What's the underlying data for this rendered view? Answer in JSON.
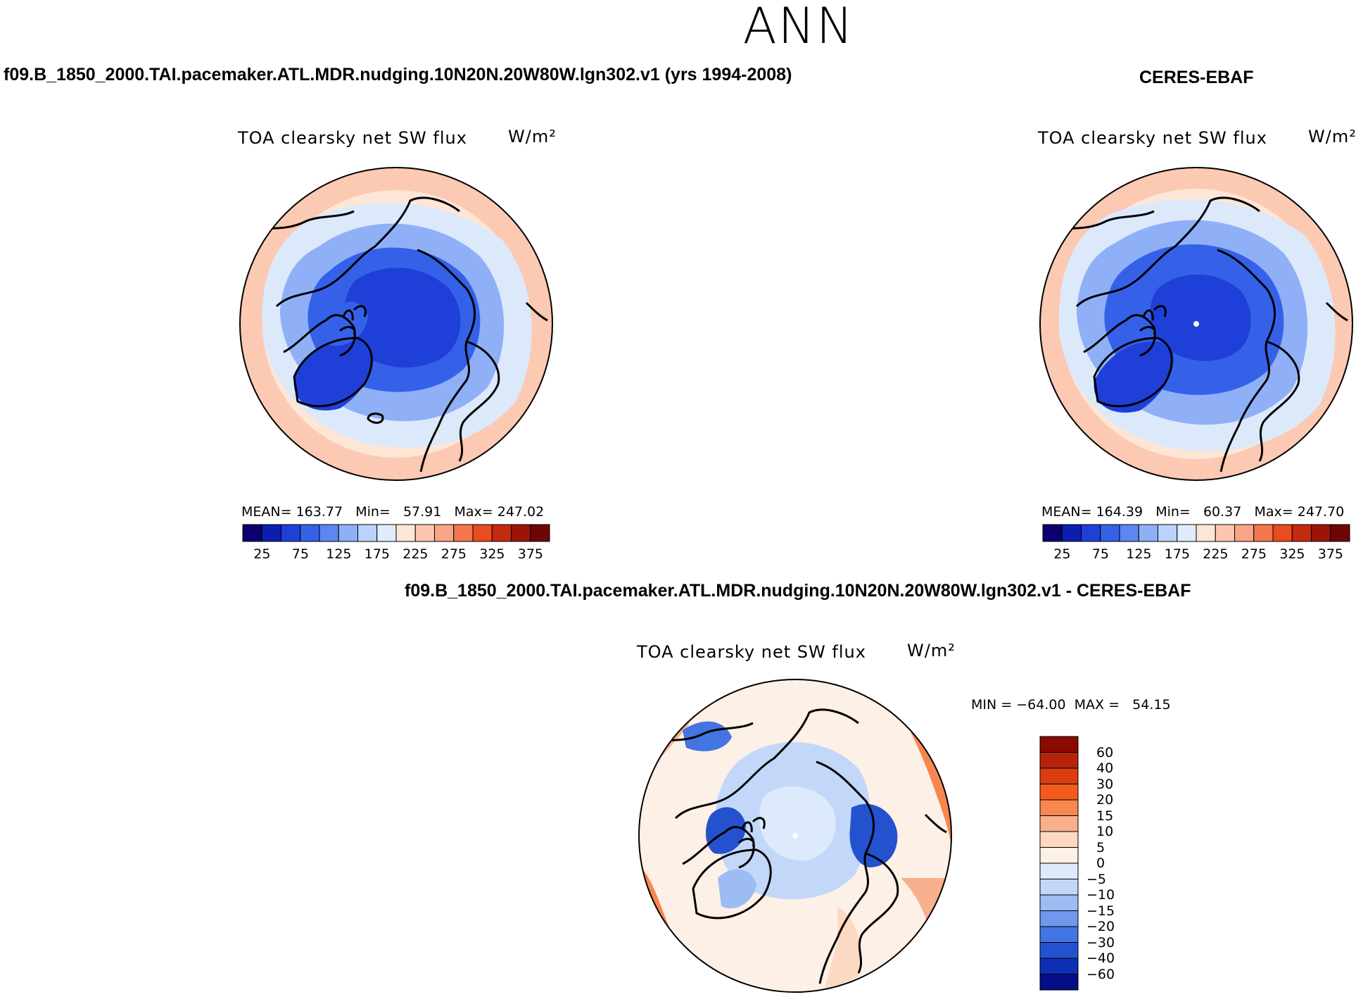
{
  "season": "ANN",
  "panels": [
    {
      "id": "model",
      "case_title": "f09.B_1850_2000.TAI.pacemaker.ATL.MDR.nudging.10N20N.20W80W.lgn302.v1 (yrs 1994-2008)",
      "variable": "TOA clearsky net SW flux",
      "units": "W/m²",
      "stats": {
        "mean_label": "MEAN=",
        "mean": "163.77",
        "min_label": "Min=",
        "min": "57.91",
        "max_label": "Max=",
        "max": "247.02"
      },
      "colorbar_ticks": [
        "25",
        "75",
        "125",
        "175",
        "225",
        "275",
        "325",
        "375"
      ]
    },
    {
      "id": "obs",
      "case_title": "CERES-EBAF",
      "variable": "TOA clearsky net SW flux",
      "units": "W/m²",
      "stats": {
        "mean_label": "MEAN=",
        "mean": "164.39",
        "min_label": "Min=",
        "min": "60.37",
        "max_label": "Max=",
        "max": "247.70"
      },
      "colorbar_ticks": [
        "25",
        "75",
        "125",
        "175",
        "225",
        "275",
        "325",
        "375"
      ]
    },
    {
      "id": "diff",
      "case_title": "f09.B_1850_2000.TAI.pacemaker.ATL.MDR.nudging.10N20N.20W80W.lgn302.v1 - CERES-EBAF",
      "variable": "TOA clearsky net SW flux",
      "units": "W/m²",
      "stats": {
        "min_label": "MIN =",
        "min": "−64.00",
        "max_label": "MAX =",
        "max": "54.15"
      },
      "colorbar_ticks": [
        "60",
        "40",
        "30",
        "20",
        "15",
        "10",
        "5",
        "0",
        "−5",
        "−10",
        "−15",
        "−20",
        "−30",
        "−40",
        "−60"
      ]
    }
  ],
  "colors": {
    "abs_scale": [
      "#08006e",
      "#0a1fb0",
      "#1e40d8",
      "#3561e8",
      "#5c86f0",
      "#8fb0f7",
      "#bcd2fa",
      "#e0ecfc",
      "#fde6d6",
      "#fcc7b0",
      "#f9a486",
      "#f5764d",
      "#e84c1f",
      "#c5290f",
      "#9c1408",
      "#6e0606"
    ],
    "diff_scale": [
      "#8c0a04",
      "#b5240a",
      "#da3d10",
      "#f25b1c",
      "#f7874f",
      "#f9b08c",
      "#fdd9c4",
      "#fdf0e6",
      "#ddeafb",
      "#c3d8f8",
      "#9dbcf4",
      "#6f98ec",
      "#4275e2",
      "#2452cf",
      "#0d2fb4",
      "#060d86"
    ],
    "coast": "#000000"
  }
}
